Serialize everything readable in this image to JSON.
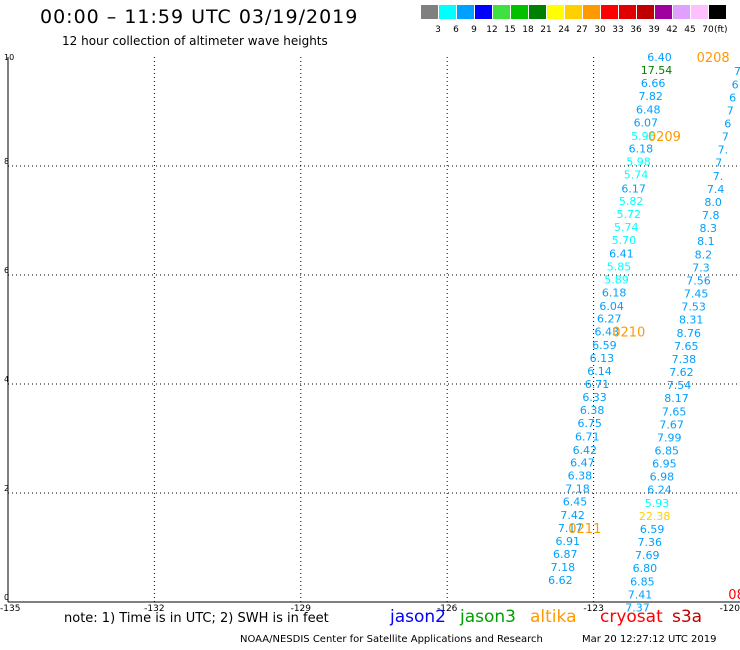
{
  "header": {
    "title": "00:00 – 11:59 UTC 03/19/2019",
    "subtitle": "12 hour collection of altimeter wave heights"
  },
  "colorbar": {
    "unit": "(ft)",
    "bins": [
      {
        "color": "#808080",
        "label": "3"
      },
      {
        "color": "#00ffff",
        "label": "6"
      },
      {
        "color": "#00a0ff",
        "label": "9"
      },
      {
        "color": "#0000ff",
        "label": "12"
      },
      {
        "color": "#40e040",
        "label": "15"
      },
      {
        "color": "#00c000",
        "label": "18"
      },
      {
        "color": "#008000",
        "label": "21"
      },
      {
        "color": "#ffff00",
        "label": "24"
      },
      {
        "color": "#ffd000",
        "label": "27"
      },
      {
        "color": "#ff9900",
        "label": "30"
      },
      {
        "color": "#ff0000",
        "label": "33"
      },
      {
        "color": "#e00000",
        "label": "36"
      },
      {
        "color": "#c00000",
        "label": "39"
      },
      {
        "color": "#a000a0",
        "label": "42"
      },
      {
        "color": "#e0a0ff",
        "label": "45"
      },
      {
        "color": "#ffc0ff",
        "label": "70"
      },
      {
        "color": "#000000",
        "label": ""
      }
    ]
  },
  "chart_data": {
    "type": "scatter",
    "title": "00:00 – 11:59 UTC 03/19/2019",
    "subtitle": "12 hour collection of altimeter wave heights",
    "xlabel": "",
    "ylabel": "",
    "xlim": [
      -135,
      -120
    ],
    "ylim": [
      0,
      10
    ],
    "xticks": [
      -135,
      -132,
      -129,
      -126,
      -123,
      -120
    ],
    "xtick_labels": [
      "-135",
      "-132",
      "-129",
      "-126",
      "-123",
      "-120"
    ],
    "yticks": [
      0,
      2,
      4,
      6,
      8,
      10
    ],
    "ytick_labels": [
      "0",
      "2",
      "4",
      "6",
      "8",
      "10"
    ],
    "grid": true,
    "series": [
      {
        "name": "jason3",
        "points": [
          {
            "x": -121.65,
            "y": 10.0,
            "label": "6.40",
            "color": "#00a0ff"
          },
          {
            "x": -121.71,
            "y": 9.76,
            "label": "17.54",
            "color": "#008000"
          },
          {
            "x": -121.78,
            "y": 9.52,
            "label": "6.66",
            "color": "#00a0ff"
          },
          {
            "x": -121.83,
            "y": 9.28,
            "label": "7.82",
            "color": "#00a0ff"
          },
          {
            "x": -121.88,
            "y": 9.04,
            "label": "6.48",
            "color": "#00a0ff"
          },
          {
            "x": -121.93,
            "y": 8.8,
            "label": "6.07",
            "color": "#00a0ff"
          },
          {
            "x": -121.98,
            "y": 8.55,
            "label": "5.96",
            "color": "#00ffff"
          },
          {
            "x": -122.03,
            "y": 8.32,
            "label": "6.18",
            "color": "#00a0ff"
          },
          {
            "x": -122.08,
            "y": 8.08,
            "label": "5.98",
            "color": "#00ffff"
          },
          {
            "x": -122.13,
            "y": 7.84,
            "label": "5.74",
            "color": "#00ffff"
          },
          {
            "x": -122.18,
            "y": 7.59,
            "label": "6.17",
            "color": "#00a0ff"
          },
          {
            "x": -122.23,
            "y": 7.36,
            "label": "5.82",
            "color": "#00ffff"
          },
          {
            "x": -122.28,
            "y": 7.12,
            "label": "5.72",
            "color": "#00ffff"
          },
          {
            "x": -122.33,
            "y": 6.88,
            "label": "5.74",
            "color": "#00ffff"
          },
          {
            "x": -122.38,
            "y": 6.64,
            "label": "5.70",
            "color": "#00ffff"
          },
          {
            "x": -122.43,
            "y": 6.39,
            "label": "6.41",
            "color": "#00a0ff"
          },
          {
            "x": -122.48,
            "y": 6.16,
            "label": "5.85",
            "color": "#00ffff"
          },
          {
            "x": -122.53,
            "y": 5.92,
            "label": "5.89",
            "color": "#00ffff"
          },
          {
            "x": -122.58,
            "y": 5.68,
            "label": "6.18",
            "color": "#00a0ff"
          },
          {
            "x": -122.63,
            "y": 5.43,
            "label": "6.04",
            "color": "#00a0ff"
          },
          {
            "x": -122.68,
            "y": 5.2,
            "label": "6.27",
            "color": "#00a0ff"
          },
          {
            "x": -122.73,
            "y": 4.96,
            "label": "6.43",
            "color": "#00a0ff"
          },
          {
            "x": -122.78,
            "y": 4.72,
            "label": "6.59",
            "color": "#00a0ff"
          },
          {
            "x": -122.83,
            "y": 4.48,
            "label": "6.13",
            "color": "#00a0ff"
          },
          {
            "x": -122.88,
            "y": 4.24,
            "label": "6.14",
            "color": "#00a0ff"
          },
          {
            "x": -122.93,
            "y": 4.0,
            "label": "6.71",
            "color": "#00a0ff"
          },
          {
            "x": -122.98,
            "y": 3.76,
            "label": "6.33",
            "color": "#00a0ff"
          },
          {
            "x": -123.03,
            "y": 3.52,
            "label": "6.38",
            "color": "#00a0ff"
          },
          {
            "x": -123.08,
            "y": 3.28,
            "label": "6.75",
            "color": "#00a0ff"
          },
          {
            "x": -123.13,
            "y": 3.04,
            "label": "6.71",
            "color": "#00a0ff"
          },
          {
            "x": -123.18,
            "y": 2.79,
            "label": "6.42",
            "color": "#00a0ff"
          },
          {
            "x": -123.23,
            "y": 2.56,
            "label": "6.47",
            "color": "#00a0ff"
          },
          {
            "x": -123.28,
            "y": 2.32,
            "label": "6.38",
            "color": "#00a0ff"
          },
          {
            "x": -123.33,
            "y": 2.08,
            "label": "7.18",
            "color": "#00a0ff"
          },
          {
            "x": -123.38,
            "y": 1.84,
            "label": "6.45",
            "color": "#00a0ff"
          },
          {
            "x": -123.43,
            "y": 1.6,
            "label": "7.42",
            "color": "#00a0ff"
          },
          {
            "x": -123.48,
            "y": 1.36,
            "label": "7.17",
            "color": "#00a0ff"
          },
          {
            "x": -123.53,
            "y": 1.12,
            "label": "6.91",
            "color": "#00a0ff"
          },
          {
            "x": -123.58,
            "y": 0.88,
            "label": "6.87",
            "color": "#00a0ff"
          },
          {
            "x": -123.63,
            "y": 0.64,
            "label": "7.18",
            "color": "#00a0ff"
          },
          {
            "x": -123.68,
            "y": 0.4,
            "label": "6.62",
            "color": "#00a0ff"
          }
        ]
      },
      {
        "name": "altika",
        "points": [
          {
            "x": -120.05,
            "y": 9.74,
            "label": "7",
            "color": "#00a0ff"
          },
          {
            "x": -120.1,
            "y": 9.5,
            "label": "6",
            "color": "#00a0ff"
          },
          {
            "x": -120.15,
            "y": 9.26,
            "label": "6",
            "color": "#00a0ff"
          },
          {
            "x": -120.2,
            "y": 9.02,
            "label": "7",
            "color": "#00a0ff"
          },
          {
            "x": -120.25,
            "y": 8.78,
            "label": "6",
            "color": "#00a0ff"
          },
          {
            "x": -120.3,
            "y": 8.54,
            "label": "7",
            "color": "#00a0ff"
          },
          {
            "x": -120.35,
            "y": 8.3,
            "label": "7.",
            "color": "#00a0ff"
          },
          {
            "x": -120.4,
            "y": 8.06,
            "label": "7.",
            "color": "#00a0ff"
          },
          {
            "x": -120.45,
            "y": 7.82,
            "label": "7.",
            "color": "#00a0ff"
          },
          {
            "x": -120.5,
            "y": 7.58,
            "label": "7.4",
            "color": "#00a0ff"
          },
          {
            "x": -120.55,
            "y": 7.34,
            "label": "8.0",
            "color": "#00a0ff"
          },
          {
            "x": -120.6,
            "y": 7.1,
            "label": "7.8",
            "color": "#00a0ff"
          },
          {
            "x": -120.65,
            "y": 6.86,
            "label": "8.3",
            "color": "#00a0ff"
          },
          {
            "x": -120.7,
            "y": 6.62,
            "label": "8.1",
            "color": "#00a0ff"
          },
          {
            "x": -120.75,
            "y": 6.38,
            "label": "8.2",
            "color": "#00a0ff"
          },
          {
            "x": -120.8,
            "y": 6.14,
            "label": "7.3",
            "color": "#00a0ff"
          },
          {
            "x": -120.85,
            "y": 5.9,
            "label": "7.56",
            "color": "#00a0ff"
          },
          {
            "x": -120.9,
            "y": 5.66,
            "label": "7.45",
            "color": "#00a0ff"
          },
          {
            "x": -120.95,
            "y": 5.42,
            "label": "7.53",
            "color": "#00a0ff"
          },
          {
            "x": -121.0,
            "y": 5.18,
            "label": "8.31",
            "color": "#00a0ff"
          },
          {
            "x": -121.05,
            "y": 4.94,
            "label": "8.76",
            "color": "#00a0ff"
          },
          {
            "x": -121.1,
            "y": 4.7,
            "label": "7.65",
            "color": "#00a0ff"
          },
          {
            "x": -121.15,
            "y": 4.46,
            "label": "7.38",
            "color": "#00a0ff"
          },
          {
            "x": -121.2,
            "y": 4.22,
            "label": "7.62",
            "color": "#00a0ff"
          },
          {
            "x": -121.25,
            "y": 3.98,
            "label": "7.54",
            "color": "#00a0ff"
          },
          {
            "x": -121.3,
            "y": 3.74,
            "label": "8.17",
            "color": "#00a0ff"
          },
          {
            "x": -121.35,
            "y": 3.5,
            "label": "7.65",
            "color": "#00a0ff"
          },
          {
            "x": -121.4,
            "y": 3.26,
            "label": "7.67",
            "color": "#00a0ff"
          },
          {
            "x": -121.45,
            "y": 3.02,
            "label": "7.99",
            "color": "#00a0ff"
          },
          {
            "x": -121.5,
            "y": 2.78,
            "label": "6.85",
            "color": "#00a0ff"
          },
          {
            "x": -121.55,
            "y": 2.54,
            "label": "6.95",
            "color": "#00a0ff"
          },
          {
            "x": -121.6,
            "y": 2.3,
            "label": "6.98",
            "color": "#00a0ff"
          },
          {
            "x": -121.65,
            "y": 2.06,
            "label": "6.24",
            "color": "#00a0ff"
          },
          {
            "x": -121.7,
            "y": 1.82,
            "label": "5.93",
            "color": "#00ffff"
          },
          {
            "x": -121.75,
            "y": 1.58,
            "label": "22.38",
            "color": "#ffd000"
          },
          {
            "x": -121.8,
            "y": 1.34,
            "label": "6.59",
            "color": "#00a0ff"
          },
          {
            "x": -121.85,
            "y": 1.1,
            "label": "7.36",
            "color": "#00a0ff"
          },
          {
            "x": -121.9,
            "y": 0.86,
            "label": "7.69",
            "color": "#00a0ff"
          },
          {
            "x": -121.95,
            "y": 0.62,
            "label": "6.80",
            "color": "#00a0ff"
          },
          {
            "x": -122.0,
            "y": 0.38,
            "label": "6.85",
            "color": "#00a0ff"
          },
          {
            "x": -122.05,
            "y": 0.14,
            "label": "7.41",
            "color": "#00a0ff"
          },
          {
            "x": -122.1,
            "y": -0.1,
            "label": "7.37",
            "color": "#00a0ff"
          }
        ]
      }
    ],
    "annotations": [
      {
        "x": -120.55,
        "y": 10.0,
        "text": "0208",
        "color": "#ff9900"
      },
      {
        "x": -121.55,
        "y": 8.55,
        "text": "0209",
        "color": "#ff9900"
      },
      {
        "x": -122.28,
        "y": 4.96,
        "text": "0210",
        "color": "#ff9900"
      },
      {
        "x": -123.18,
        "y": 1.36,
        "text": "0211",
        "color": "#ff9900"
      },
      {
        "x": -120.07,
        "y": 0.15,
        "text": "08",
        "color": "#ff0000"
      }
    ]
  },
  "footer": {
    "note": "note: 1) Time is in UTC; 2) SWH is in feet",
    "satellites": [
      {
        "label": "jason2",
        "color": "#0000ff"
      },
      {
        "label": "jason3",
        "color": "#00a000"
      },
      {
        "label": "altika",
        "color": "#ff9900"
      },
      {
        "label": "cryosat",
        "color": "#ff0000"
      },
      {
        "label": "s3a",
        "color": "#c00000"
      }
    ],
    "credit": "NOAA/NESDIS Center for Satellite Applications and Research",
    "timestamp": "Mar 20 12:27:12 UTC 2019"
  }
}
